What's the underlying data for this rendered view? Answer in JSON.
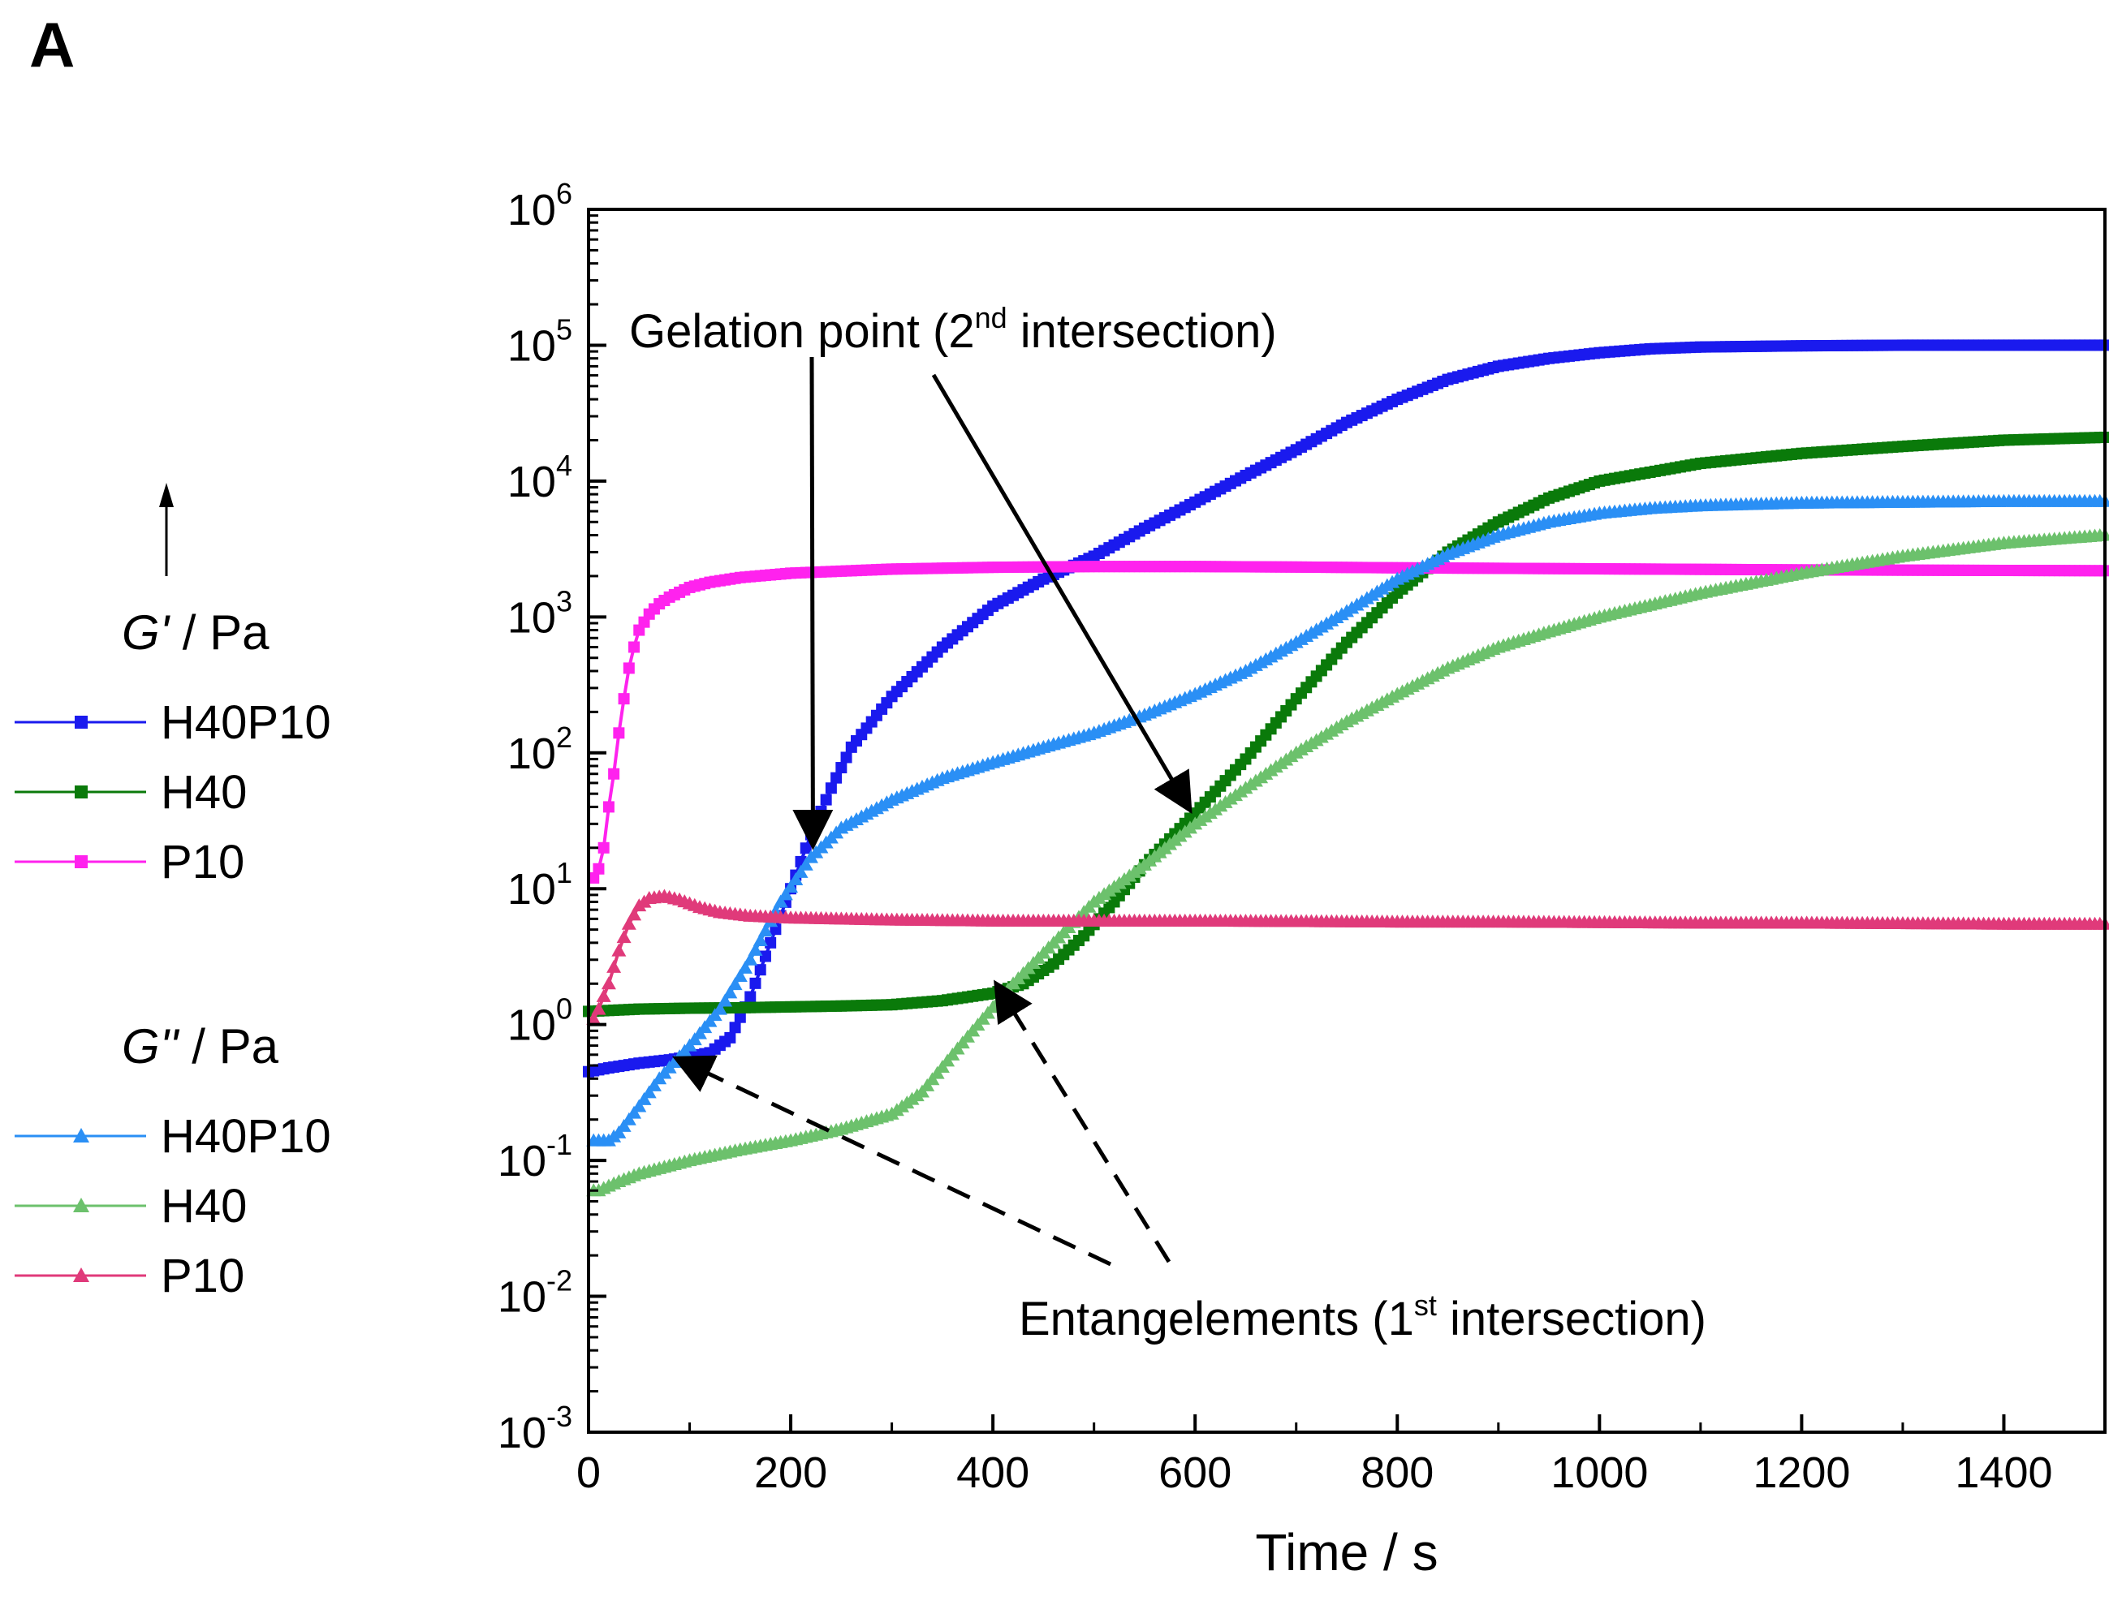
{
  "panel_label": "A",
  "chart_data": {
    "type": "line",
    "title": "",
    "xlabel": "Time / s",
    "ylabel": "",
    "yscale": "log",
    "xlim": [
      0,
      1500
    ],
    "ylim_exponents": [
      -3,
      6
    ],
    "x_ticks": [
      "0",
      "200",
      "400",
      "600",
      "800",
      "1000",
      "1200",
      "1400"
    ],
    "x_tick_values": [
      0,
      200,
      400,
      600,
      800,
      1000,
      1200,
      1400
    ],
    "y_tick_exponents": [
      "-3",
      "-2",
      "-1",
      "0",
      "1",
      "2",
      "3",
      "4",
      "5",
      "6"
    ],
    "y_tick_base": "10",
    "grid": false,
    "legend": {
      "placement": "left",
      "arrow": "up-arrow-icon",
      "groups": [
        {
          "symbol": "G'",
          "unit": " / Pa",
          "series_names": [
            "H40P10",
            "H40",
            "P10"
          ],
          "marker": "square"
        },
        {
          "symbol": "G''",
          "unit": " / Pa",
          "series_names": [
            "H40P10",
            "H40",
            "P10"
          ],
          "marker": "triangle"
        }
      ]
    },
    "series": [
      {
        "name": "H40P10",
        "group": "G'",
        "marker": "square",
        "color": "#1a1aee",
        "points": [
          [
            0,
            0.45
          ],
          [
            20,
            0.48
          ],
          [
            50,
            0.52
          ],
          [
            80,
            0.55
          ],
          [
            100,
            0.58
          ],
          [
            120,
            0.62
          ],
          [
            140,
            0.8
          ],
          [
            160,
            1.6
          ],
          [
            180,
            4
          ],
          [
            200,
            10
          ],
          [
            220,
            25
          ],
          [
            240,
            55
          ],
          [
            260,
            110
          ],
          [
            300,
            260
          ],
          [
            350,
            600
          ],
          [
            400,
            1200
          ],
          [
            450,
            1900
          ],
          [
            500,
            2800
          ],
          [
            550,
            4500
          ],
          [
            600,
            7000
          ],
          [
            650,
            11000
          ],
          [
            700,
            17000
          ],
          [
            750,
            27000
          ],
          [
            800,
            40000
          ],
          [
            850,
            56000
          ],
          [
            900,
            70000
          ],
          [
            950,
            80000
          ],
          [
            1000,
            88000
          ],
          [
            1050,
            94000
          ],
          [
            1100,
            97000
          ],
          [
            1200,
            99000
          ],
          [
            1300,
            100000
          ],
          [
            1400,
            100000
          ],
          [
            1500,
            100000
          ]
        ]
      },
      {
        "name": "H40",
        "group": "G'",
        "marker": "square",
        "color": "#0a7a0a",
        "points": [
          [
            0,
            1.25
          ],
          [
            50,
            1.3
          ],
          [
            100,
            1.32
          ],
          [
            150,
            1.33
          ],
          [
            200,
            1.35
          ],
          [
            250,
            1.37
          ],
          [
            300,
            1.4
          ],
          [
            350,
            1.5
          ],
          [
            400,
            1.7
          ],
          [
            430,
            2
          ],
          [
            460,
            2.8
          ],
          [
            490,
            4.5
          ],
          [
            520,
            8
          ],
          [
            550,
            15
          ],
          [
            600,
            36
          ],
          [
            650,
            90
          ],
          [
            700,
            250
          ],
          [
            750,
            650
          ],
          [
            800,
            1500
          ],
          [
            850,
            3000
          ],
          [
            900,
            5000
          ],
          [
            950,
            7500
          ],
          [
            1000,
            10000
          ],
          [
            1100,
            13500
          ],
          [
            1200,
            16000
          ],
          [
            1300,
            18000
          ],
          [
            1400,
            20000
          ],
          [
            1500,
            21000
          ]
        ]
      },
      {
        "name": "P10",
        "group": "G'",
        "marker": "square",
        "color": "#ff22ee",
        "points": [
          [
            5,
            12
          ],
          [
            10,
            14
          ],
          [
            15,
            20
          ],
          [
            20,
            40
          ],
          [
            25,
            70
          ],
          [
            30,
            140
          ],
          [
            35,
            250
          ],
          [
            40,
            420
          ],
          [
            45,
            600
          ],
          [
            50,
            800
          ],
          [
            60,
            1050
          ],
          [
            70,
            1250
          ],
          [
            80,
            1400
          ],
          [
            100,
            1650
          ],
          [
            120,
            1800
          ],
          [
            150,
            1950
          ],
          [
            200,
            2100
          ],
          [
            300,
            2250
          ],
          [
            400,
            2320
          ],
          [
            500,
            2350
          ],
          [
            600,
            2350
          ],
          [
            700,
            2330
          ],
          [
            800,
            2300
          ],
          [
            900,
            2280
          ],
          [
            1000,
            2260
          ],
          [
            1100,
            2240
          ],
          [
            1200,
            2220
          ],
          [
            1300,
            2210
          ],
          [
            1400,
            2200
          ],
          [
            1500,
            2190
          ]
        ]
      },
      {
        "name": "H40P10",
        "group": "G''",
        "marker": "triangle",
        "color": "#2a8ff5",
        "points": [
          [
            5,
            0.14
          ],
          [
            20,
            0.14
          ],
          [
            30,
            0.16
          ],
          [
            50,
            0.25
          ],
          [
            70,
            0.4
          ],
          [
            100,
            0.7
          ],
          [
            130,
            1.3
          ],
          [
            160,
            3
          ],
          [
            190,
            8
          ],
          [
            220,
            17
          ],
          [
            250,
            28
          ],
          [
            300,
            45
          ],
          [
            350,
            65
          ],
          [
            400,
            85
          ],
          [
            450,
            110
          ],
          [
            500,
            140
          ],
          [
            550,
            190
          ],
          [
            600,
            270
          ],
          [
            650,
            400
          ],
          [
            700,
            650
          ],
          [
            750,
            1100
          ],
          [
            800,
            1900
          ],
          [
            850,
            2900
          ],
          [
            900,
            4000
          ],
          [
            950,
            5000
          ],
          [
            1000,
            5800
          ],
          [
            1050,
            6300
          ],
          [
            1100,
            6600
          ],
          [
            1200,
            6900
          ],
          [
            1300,
            7000
          ],
          [
            1400,
            7100
          ],
          [
            1500,
            7100
          ]
        ]
      },
      {
        "name": "H40",
        "group": "G''",
        "marker": "triangle",
        "color": "#6cc16c",
        "points": [
          [
            5,
            0.06
          ],
          [
            10,
            0.06
          ],
          [
            20,
            0.065
          ],
          [
            30,
            0.07
          ],
          [
            50,
            0.08
          ],
          [
            100,
            0.1
          ],
          [
            150,
            0.12
          ],
          [
            200,
            0.14
          ],
          [
            250,
            0.17
          ],
          [
            300,
            0.22
          ],
          [
            330,
            0.32
          ],
          [
            360,
            0.6
          ],
          [
            390,
            1.1
          ],
          [
            420,
            2
          ],
          [
            460,
            4
          ],
          [
            500,
            8
          ],
          [
            550,
            15
          ],
          [
            600,
            30
          ],
          [
            650,
            55
          ],
          [
            700,
            100
          ],
          [
            750,
            170
          ],
          [
            800,
            270
          ],
          [
            850,
            420
          ],
          [
            900,
            600
          ],
          [
            950,
            780
          ],
          [
            1000,
            1000
          ],
          [
            1100,
            1500
          ],
          [
            1200,
            2100
          ],
          [
            1300,
            2800
          ],
          [
            1400,
            3500
          ],
          [
            1500,
            4000
          ]
        ]
      },
      {
        "name": "P10",
        "group": "G''",
        "marker": "triangle",
        "color": "#e03a7a",
        "points": [
          [
            5,
            1.1
          ],
          [
            10,
            1.3
          ],
          [
            20,
            2
          ],
          [
            30,
            3.5
          ],
          [
            40,
            5.5
          ],
          [
            50,
            7.5
          ],
          [
            60,
            8.5
          ],
          [
            75,
            8.8
          ],
          [
            90,
            8.3
          ],
          [
            110,
            7.3
          ],
          [
            130,
            6.7
          ],
          [
            160,
            6.3
          ],
          [
            200,
            6.1
          ],
          [
            300,
            5.9
          ],
          [
            400,
            5.8
          ],
          [
            500,
            5.8
          ],
          [
            600,
            5.8
          ],
          [
            700,
            5.75
          ],
          [
            800,
            5.7
          ],
          [
            900,
            5.7
          ],
          [
            1000,
            5.65
          ],
          [
            1100,
            5.6
          ],
          [
            1200,
            5.6
          ],
          [
            1300,
            5.55
          ],
          [
            1400,
            5.5
          ],
          [
            1500,
            5.5
          ]
        ]
      }
    ],
    "annotations": [
      {
        "text_before": "Gelation point (2",
        "superscript": "nd",
        "text_after": " intersection)",
        "style": "solid",
        "anchor_data": [
          43,
          250000
        ],
        "targets": [
          [
            222,
            22
          ],
          [
            593,
            40
          ]
        ]
      },
      {
        "text_before": "Entangelements (1",
        "superscript": "st",
        "text_after": " intersection)",
        "style": "dashed",
        "anchor_data": [
          857,
          0.012
        ],
        "targets": [
          [
            90,
            0.55
          ],
          [
            405,
            1.9
          ]
        ]
      }
    ]
  }
}
